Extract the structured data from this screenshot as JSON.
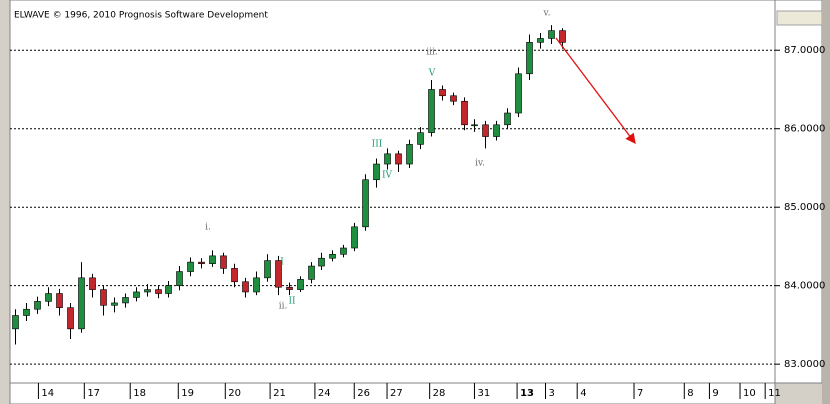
{
  "chart_data": {
    "type": "candlestick",
    "title": "ELWAVE © 1996, 2010 Prognosis Software Development",
    "open": [
      83.45,
      83.62,
      83.7,
      83.8,
      83.9,
      83.72,
      83.45,
      84.1,
      83.95,
      83.75,
      83.78,
      83.85,
      83.92,
      83.95,
      83.9,
      84.0,
      84.18,
      84.3,
      84.28,
      84.38,
      84.22,
      84.05,
      83.92,
      84.1,
      84.32,
      83.98,
      83.95,
      84.08,
      84.25,
      84.35,
      84.4,
      84.48,
      84.75,
      85.35,
      85.55,
      85.68,
      85.55,
      85.8,
      85.95,
      86.5,
      86.42,
      86.35,
      86.05,
      86.05,
      85.9,
      86.05,
      86.2,
      86.7,
      87.1,
      87.15,
      87.25
    ],
    "high": [
      83.7,
      83.78,
      83.86,
      83.98,
      83.96,
      83.78,
      84.3,
      84.15,
      84.0,
      83.85,
      83.9,
      83.98,
      84.02,
      84.0,
      84.06,
      84.25,
      84.36,
      84.35,
      84.45,
      84.42,
      84.28,
      84.1,
      84.18,
      84.4,
      84.38,
      84.04,
      84.12,
      84.3,
      84.42,
      84.45,
      84.52,
      84.8,
      85.42,
      85.62,
      85.75,
      85.72,
      85.86,
      86.02,
      86.62,
      86.55,
      86.46,
      86.4,
      86.12,
      86.1,
      86.1,
      86.26,
      86.78,
      87.2,
      87.22,
      87.32,
      87.28
    ],
    "low": [
      83.25,
      83.55,
      83.64,
      83.74,
      83.62,
      83.32,
      83.4,
      83.85,
      83.62,
      83.66,
      83.72,
      83.8,
      83.86,
      83.84,
      83.85,
      83.94,
      84.12,
      84.22,
      84.24,
      84.15,
      83.98,
      83.85,
      83.88,
      84.05,
      83.88,
      83.88,
      83.92,
      84.03,
      84.2,
      84.31,
      84.36,
      84.44,
      84.7,
      85.25,
      85.48,
      85.45,
      85.5,
      85.74,
      85.9,
      86.36,
      86.3,
      85.98,
      85.96,
      85.75,
      85.85,
      86.0,
      86.15,
      86.62,
      87.02,
      87.08,
      87.02
    ],
    "close": [
      83.62,
      83.7,
      83.8,
      83.9,
      83.72,
      83.45,
      84.1,
      83.95,
      83.75,
      83.78,
      83.85,
      83.92,
      83.95,
      83.9,
      84.0,
      84.18,
      84.3,
      84.28,
      84.38,
      84.22,
      84.05,
      83.92,
      84.1,
      84.32,
      83.98,
      83.95,
      84.08,
      84.25,
      84.35,
      84.4,
      84.48,
      84.75,
      85.35,
      85.55,
      85.68,
      85.55,
      85.8,
      85.95,
      86.5,
      86.42,
      86.35,
      86.05,
      86.05,
      85.9,
      86.05,
      86.2,
      86.7,
      87.1,
      87.15,
      87.25,
      87.1
    ],
    "up_color": "#1f8f3f",
    "down_color": "#c1272d",
    "xlim": [
      0,
      70
    ],
    "xticks": [
      {
        "value": 2.6,
        "label": "14"
      },
      {
        "value": 6.8,
        "label": "17"
      },
      {
        "value": 11.0,
        "label": "18"
      },
      {
        "value": 15.4,
        "label": "19"
      },
      {
        "value": 19.7,
        "label": "20"
      },
      {
        "value": 23.8,
        "label": "21"
      },
      {
        "value": 27.9,
        "label": "24"
      },
      {
        "value": 31.5,
        "label": "26"
      },
      {
        "value": 34.5,
        "label": "27"
      },
      {
        "value": 38.4,
        "label": "28"
      },
      {
        "value": 42.5,
        "label": "31"
      },
      {
        "value": 46.4,
        "label": "13",
        "bold": true
      },
      {
        "value": 49.0,
        "label": "3"
      },
      {
        "value": 51.9,
        "label": "4"
      },
      {
        "value": 57.1,
        "label": "7"
      },
      {
        "value": 61.7,
        "label": "8"
      },
      {
        "value": 64.0,
        "label": "9"
      },
      {
        "value": 66.8,
        "label": "10"
      },
      {
        "value": 69.1,
        "label": "11"
      }
    ],
    "ylim": [
      82.76,
      87.64
    ],
    "yticks": [
      {
        "value": 83,
        "label": "83.0000"
      },
      {
        "value": 84,
        "label": "84.0000"
      },
      {
        "value": 85,
        "label": "85.0000"
      },
      {
        "value": 86,
        "label": "86.0000"
      },
      {
        "value": 87,
        "label": "87.0000"
      }
    ],
    "grid": true,
    "annotations": [
      {
        "text": "i.",
        "color": "#666666"
      },
      {
        "text": "I",
        "color": "#1f9a6a"
      },
      {
        "text": "ii.",
        "color": "#666666"
      },
      {
        "text": "II",
        "color": "#1f9a6a"
      },
      {
        "text": "III",
        "color": "#1f9a6a"
      },
      {
        "text": "IV",
        "color": "#1f9a6a"
      },
      {
        "text": "iii.",
        "color": "#666666"
      },
      {
        "text": "V",
        "color": "#1f9a6a"
      },
      {
        "text": "iv.",
        "color": "#666666"
      },
      {
        "text": "v.",
        "color": "#666666"
      }
    ]
  }
}
